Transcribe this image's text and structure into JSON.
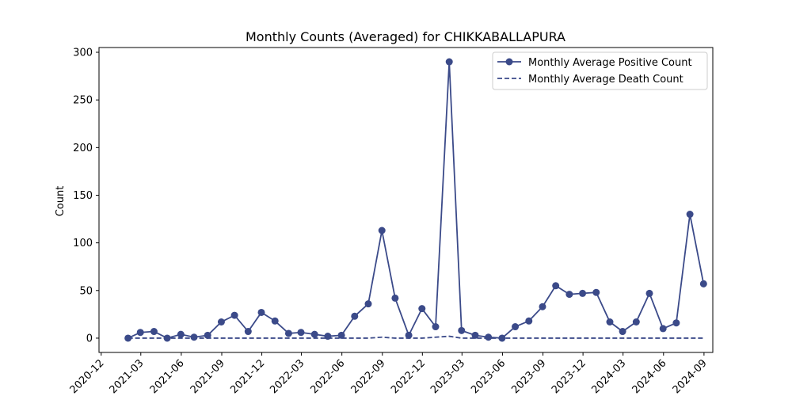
{
  "chart_data": {
    "type": "line",
    "title": "Monthly Counts (Averaged) for CHIKKABALLAPURA",
    "xlabel": "",
    "ylabel": "Count",
    "ylim": [
      -15,
      305
    ],
    "xlim": [
      "2020-11-26",
      "2024-09-21"
    ],
    "grid": false,
    "legend_position": "top-right",
    "xticks": [
      "2020-12",
      "2021-03",
      "2021-06",
      "2021-09",
      "2021-12",
      "2022-03",
      "2022-06",
      "2022-09",
      "2022-12",
      "2023-03",
      "2023-06",
      "2023-09",
      "2023-12",
      "2024-03",
      "2024-06",
      "2024-09"
    ],
    "yticks": [
      0,
      50,
      100,
      150,
      200,
      250,
      300
    ],
    "x": [
      "2021-01-31",
      "2021-02-28",
      "2021-03-31",
      "2021-04-30",
      "2021-05-31",
      "2021-06-30",
      "2021-07-31",
      "2021-08-31",
      "2021-09-30",
      "2021-10-31",
      "2021-11-30",
      "2021-12-31",
      "2022-01-31",
      "2022-02-28",
      "2022-03-31",
      "2022-04-30",
      "2022-05-31",
      "2022-06-30",
      "2022-07-31",
      "2022-08-31",
      "2022-09-30",
      "2022-10-31",
      "2022-11-30",
      "2022-12-31",
      "2023-01-31",
      "2023-02-28",
      "2023-03-31",
      "2023-04-30",
      "2023-05-31",
      "2023-06-30",
      "2023-07-31",
      "2023-08-31",
      "2023-09-30",
      "2023-10-31",
      "2023-11-30",
      "2023-12-31",
      "2024-01-31",
      "2024-02-29",
      "2024-03-31",
      "2024-04-30",
      "2024-05-31",
      "2024-06-30",
      "2024-07-31",
      "2024-08-31"
    ],
    "series": [
      {
        "name": "Monthly Average Positive Count",
        "style": "solid",
        "marker": "circle",
        "color": "#3b4a89",
        "values": [
          0,
          6,
          7,
          0,
          4,
          1,
          3,
          17,
          24,
          7,
          27,
          18,
          5,
          6,
          4,
          2,
          3,
          23,
          36,
          113,
          42,
          3,
          31,
          12,
          290,
          8,
          3,
          1,
          0,
          12,
          18,
          33,
          55,
          46,
          47,
          48,
          17,
          7,
          17,
          47,
          10,
          16,
          130,
          57
        ]
      },
      {
        "name": "Monthly Average Death Count",
        "style": "dashed",
        "marker": "none",
        "color": "#3b4a89",
        "values": [
          0,
          0,
          0,
          0,
          0,
          0,
          0,
          0,
          0,
          0,
          0,
          0,
          0,
          0,
          0,
          0,
          0,
          0,
          0,
          1,
          0,
          0,
          0,
          1,
          2,
          0,
          0,
          0,
          0,
          0,
          0,
          0,
          0,
          0,
          0,
          0,
          0,
          0,
          0,
          0,
          0,
          0,
          0,
          0
        ]
      }
    ]
  }
}
